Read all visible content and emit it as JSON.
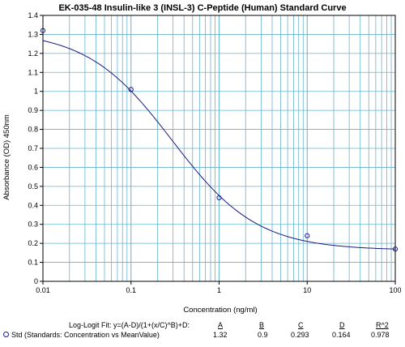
{
  "chart_data": {
    "type": "scatter",
    "title": "EK-035-48 Insulin-like 3 (INSL-3) C-Peptide (Human) Standard Curve",
    "xlabel": "Concentration (ng/ml)",
    "ylabel": "Absorbance (OD) 450nm",
    "xscale": "log",
    "xlim": [
      0.01,
      100
    ],
    "ylim": [
      0,
      1.4
    ],
    "x_ticks": [
      "0.01",
      "0.1",
      "1",
      "10",
      "100"
    ],
    "y_ticks": [
      "0",
      "0.1",
      "0.2",
      "0.3",
      "0.4",
      "0.5",
      "0.6",
      "0.7",
      "0.8",
      "0.9",
      "1",
      "1.1",
      "1.2",
      "1.3",
      "1.4"
    ],
    "grid": true,
    "series": [
      {
        "name": "Std (Standards: Concentration vs MeanValue)",
        "x": [
          0.01,
          0.1,
          1,
          10,
          100
        ],
        "y": [
          1.32,
          1.01,
          0.44,
          0.24,
          0.17
        ]
      }
    ],
    "fit": {
      "label": "Log-Logit Fit: y=(A-D)/(1+(x/C)^B)+D:",
      "headers": [
        "A",
        "B",
        "C",
        "D",
        "R^2"
      ],
      "values": [
        "1.32",
        "0.9",
        "0.293",
        "0.164",
        "0.978"
      ],
      "A": 1.32,
      "B": 0.9,
      "C": 0.293,
      "D": 0.164
    },
    "colors": {
      "grid": "#66b3cc",
      "curve": "#1a1a80",
      "marker": "#1a1a99",
      "axis": "#000000"
    }
  }
}
